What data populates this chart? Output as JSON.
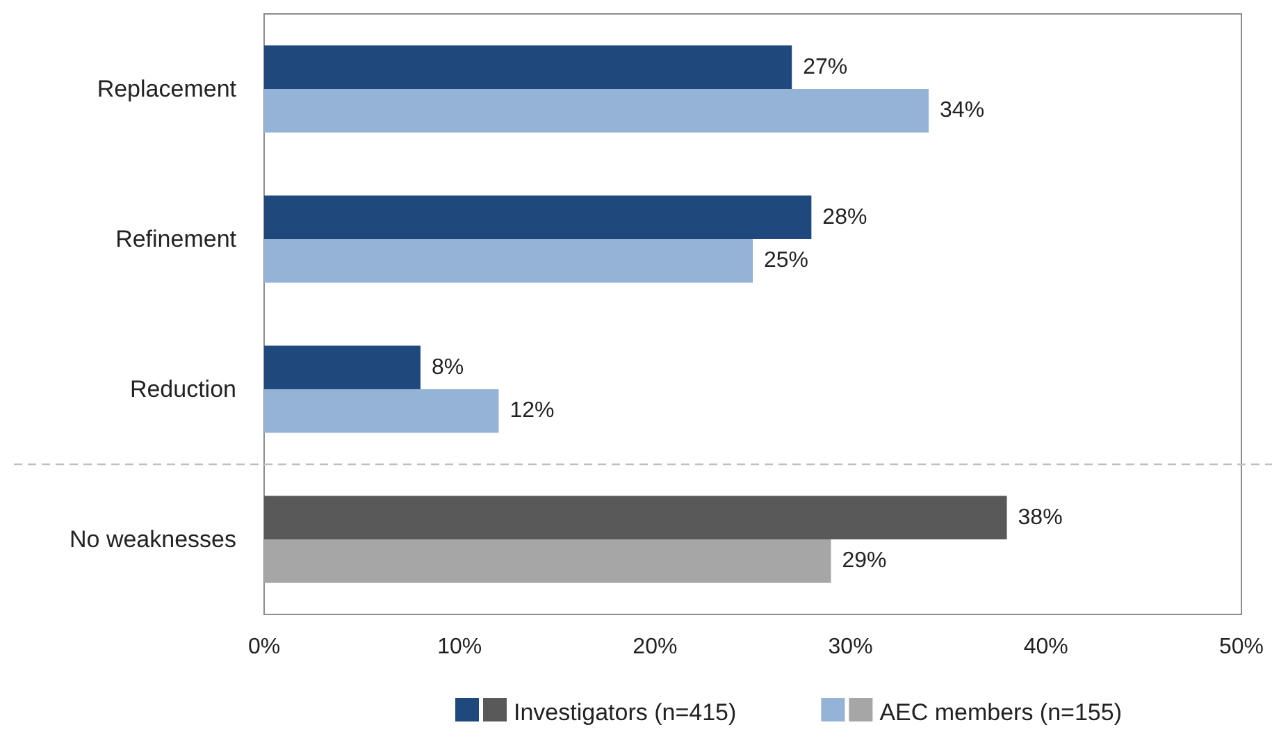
{
  "chart_data": {
    "type": "bar",
    "orientation": "horizontal",
    "categories": [
      "Replacement",
      "Refinement",
      "Reduction",
      "No weaknesses"
    ],
    "series": [
      {
        "name": "Investigators (n=415)",
        "color": "#1f497d",
        "colors": [
          "#1f497d",
          "#1f497d",
          "#1f497d",
          "#595959"
        ],
        "values": [
          27,
          28,
          8,
          38
        ],
        "value_labels": [
          "27%",
          "28%",
          "8%",
          "38%"
        ]
      },
      {
        "name": "AEC members (n=155)",
        "color": "#95b3d7",
        "colors": [
          "#95b3d7",
          "#95b3d7",
          "#95b3d7",
          "#a6a6a6"
        ],
        "values": [
          34,
          25,
          12,
          29
        ],
        "value_labels": [
          "34%",
          "25%",
          "12%",
          "29%"
        ]
      }
    ],
    "xlim": [
      0,
      50
    ],
    "xticks": [
      {
        "value": 0,
        "label": "0%"
      },
      {
        "value": 10,
        "label": "10%"
      },
      {
        "value": 20,
        "label": "20%"
      },
      {
        "value": 30,
        "label": "30%"
      },
      {
        "value": 40,
        "label": "40%"
      },
      {
        "value": 50,
        "label": "50%"
      }
    ],
    "legend": "bottom"
  }
}
